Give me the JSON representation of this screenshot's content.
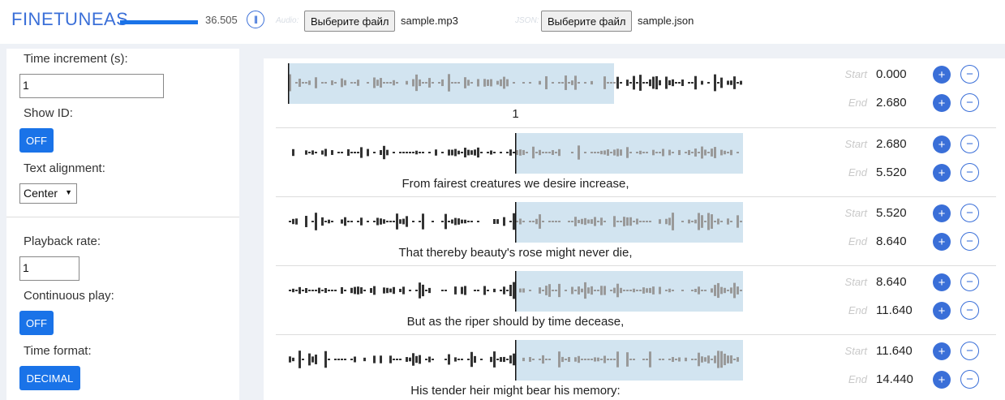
{
  "header": {
    "logo": "FINETUNEAS",
    "progress": 1.0,
    "time": "36.505",
    "pause_icon": "pause-icon",
    "audio_label": "Audio:",
    "json_label": "JSON:",
    "audio_button": "Выберите файл",
    "audio_file": "sample.mp3",
    "json_button": "Выберите файл",
    "json_file": "sample.json"
  },
  "sidebar": {
    "time_increment_label": "Time increment (s):",
    "time_increment_value": "1",
    "show_id_label": "Show ID:",
    "show_id_value": "OFF",
    "text_alignment_label": "Text alignment:",
    "text_alignment_value": "Center",
    "playback_rate_label": "Playback rate:",
    "playback_rate_value": "1",
    "continuous_play_label": "Continuous play:",
    "continuous_play_value": "OFF",
    "time_format_label": "Time format:",
    "time_format_value": "DECIMAL"
  },
  "colors": {
    "accent": "#1a73e8",
    "brand": "#3a6fd8",
    "selection": "#d2e4f0",
    "wave_light": "#999999",
    "wave_dark": "#333333"
  },
  "segments": [
    {
      "text": "1",
      "start_label": "Start",
      "start": "0.000",
      "end_label": "End",
      "end": "2.680",
      "plus": "+",
      "minus": "−"
    },
    {
      "text": "From fairest creatures we desire increase,",
      "start_label": "Start",
      "start": "2.680",
      "end_label": "End",
      "end": "5.520",
      "plus": "+",
      "minus": "−"
    },
    {
      "text": "That thereby beauty's rose might never die,",
      "start_label": "Start",
      "start": "5.520",
      "end_label": "End",
      "end": "8.640",
      "plus": "+",
      "minus": "−"
    },
    {
      "text": "But as the riper should by time decease,",
      "start_label": "Start",
      "start": "8.640",
      "end_label": "End",
      "end": "11.640",
      "plus": "+",
      "minus": "−"
    },
    {
      "text": "His tender heir might bear his memory:",
      "start_label": "Start",
      "start": "11.640",
      "end_label": "End",
      "end": "14.440",
      "plus": "+",
      "minus": "−"
    }
  ]
}
